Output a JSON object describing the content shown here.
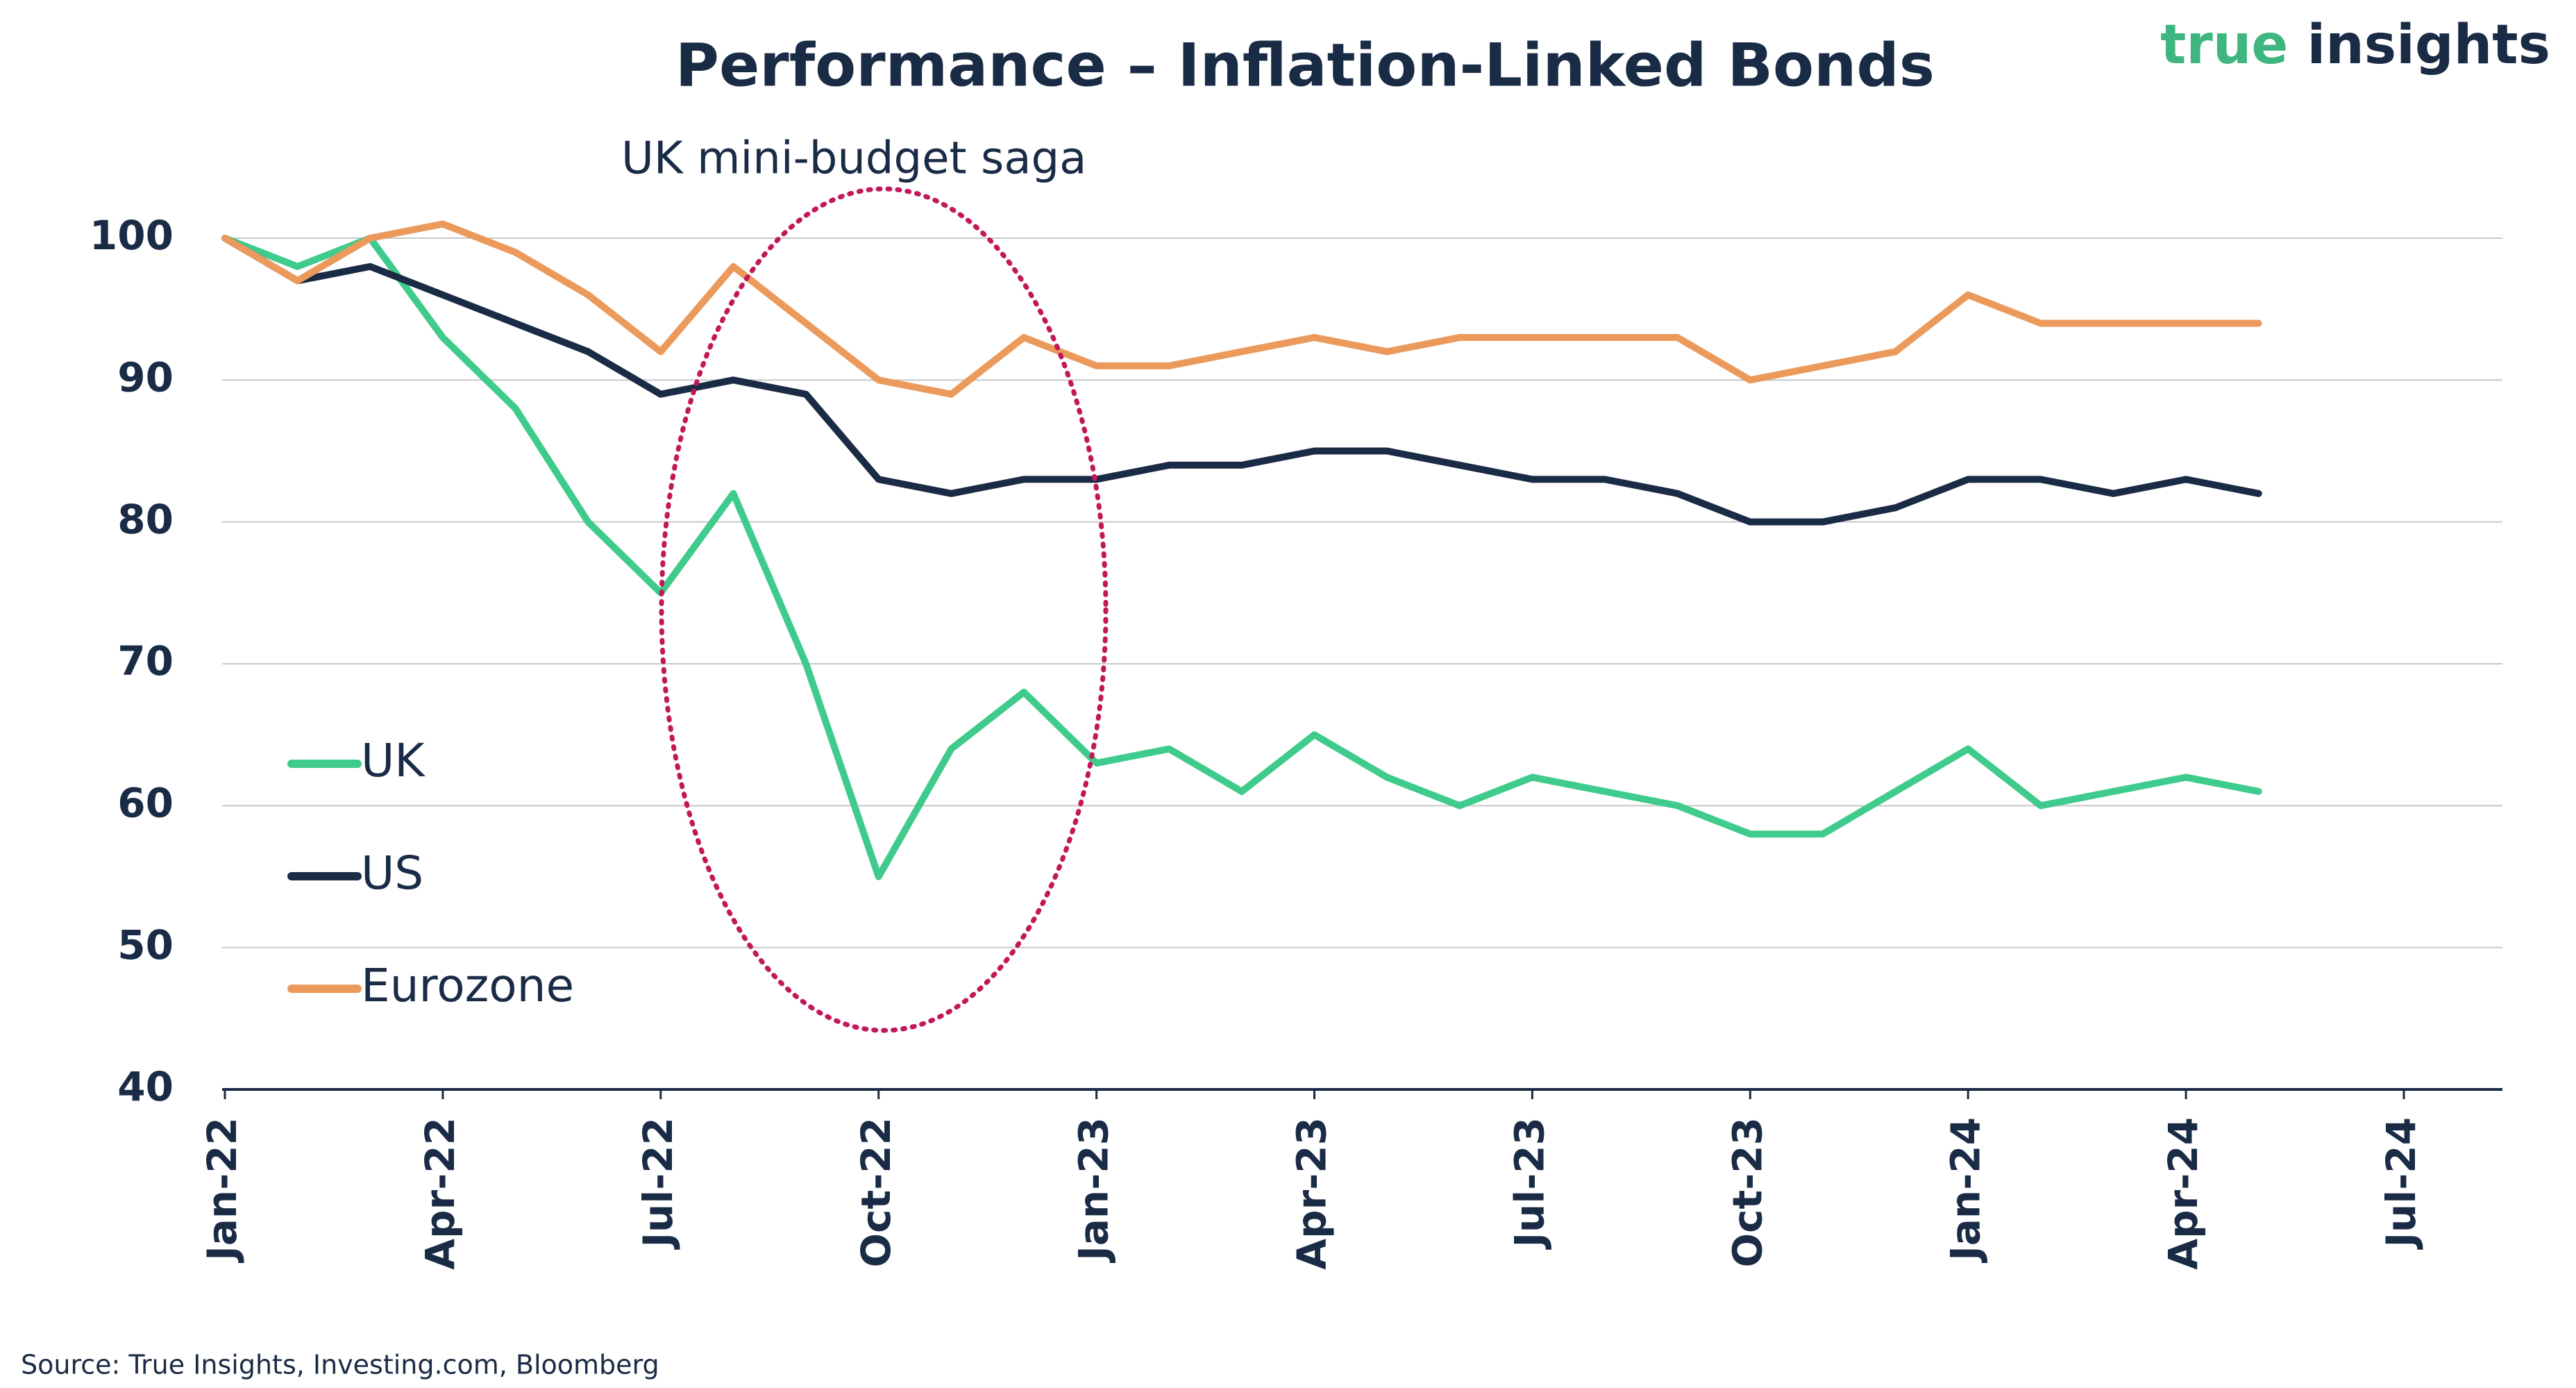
{
  "chart_data": {
    "type": "line",
    "title": "Performance – Inflation-Linked Bonds",
    "subtitle": "UK mini-budget saga",
    "source": "Source: True Insights, Investing.com, Bloomberg",
    "logo": {
      "first": "true",
      "second": "insights"
    },
    "x": [
      "2022-01",
      "2022-02",
      "2022-03",
      "2022-04",
      "2022-05",
      "2022-06",
      "2022-07",
      "2022-08",
      "2022-09",
      "2022-10",
      "2022-11",
      "2022-12",
      "2023-01",
      "2023-02",
      "2023-03",
      "2023-04",
      "2023-05",
      "2023-06",
      "2023-07",
      "2023-08",
      "2023-09",
      "2023-10",
      "2023-11",
      "2023-12",
      "2024-01",
      "2024-02",
      "2024-03",
      "2024-04",
      "2024-05"
    ],
    "series": [
      {
        "name": "UK",
        "color": "#3fcb8c",
        "values": [
          100,
          98,
          100,
          93,
          88,
          80,
          75,
          82,
          70,
          55,
          64,
          68,
          63,
          64,
          61,
          65,
          62,
          60,
          62,
          61,
          60,
          58,
          58,
          61,
          64,
          60,
          61,
          62,
          61
        ]
      },
      {
        "name": "US",
        "color": "#1a2b45",
        "values": [
          100,
          97,
          98,
          96,
          94,
          92,
          89,
          90,
          89,
          83,
          82,
          83,
          83,
          84,
          84,
          85,
          85,
          84,
          83,
          83,
          82,
          80,
          80,
          81,
          83,
          83,
          82,
          83,
          82
        ]
      },
      {
        "name": "Eurozone",
        "color": "#eb9a5c",
        "values": [
          100,
          97,
          100,
          101,
          99,
          96,
          92,
          98,
          94,
          90,
          89,
          93,
          91,
          91,
          92,
          93,
          92,
          93,
          93,
          93,
          93,
          90,
          91,
          92,
          96,
          94,
          94,
          94,
          94
        ]
      }
    ],
    "xlim": [
      "2022-01",
      "2024-07"
    ],
    "xticks": [
      {
        "value": "2022-01",
        "label": "Jan-22"
      },
      {
        "value": "2022-04",
        "label": "Apr-22"
      },
      {
        "value": "2022-07",
        "label": "Jul-22"
      },
      {
        "value": "2022-10",
        "label": "Oct-22"
      },
      {
        "value": "2023-01",
        "label": "Jan-23"
      },
      {
        "value": "2023-04",
        "label": "Apr-23"
      },
      {
        "value": "2023-07",
        "label": "Jul-23"
      },
      {
        "value": "2023-10",
        "label": "Oct-23"
      },
      {
        "value": "2024-01",
        "label": "Jan-24"
      },
      {
        "value": "2024-04",
        "label": "Apr-24"
      },
      {
        "value": "2024-07",
        "label": "Jul-24"
      }
    ],
    "ylim": [
      40,
      100
    ],
    "yticks": [
      40,
      50,
      60,
      70,
      80,
      90,
      100
    ],
    "grid": true,
    "legend": "left"
  }
}
